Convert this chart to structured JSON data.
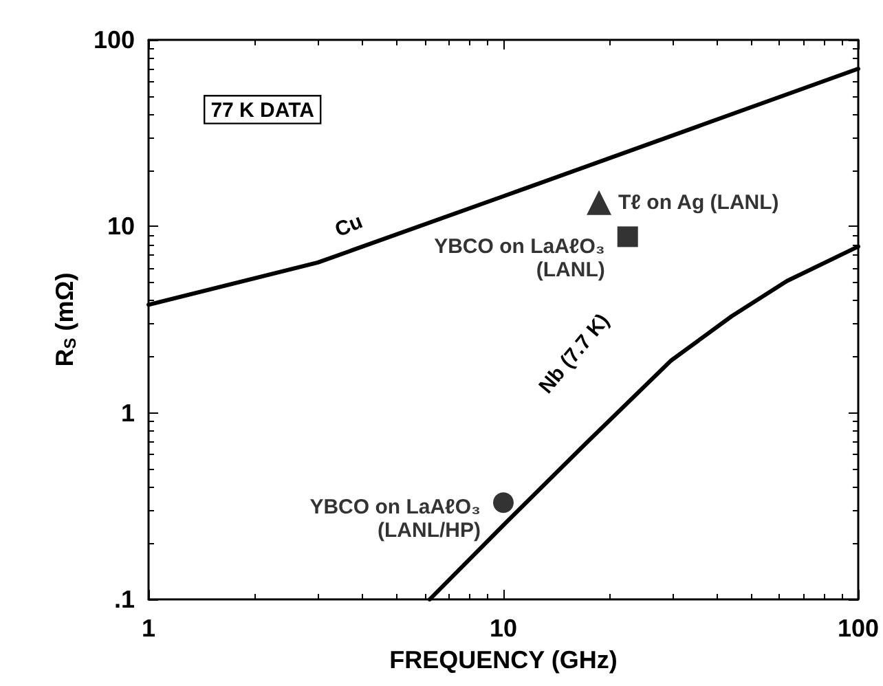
{
  "chart_data": {
    "type": "line",
    "xlabel": "FREQUENCY (GHz)",
    "ylabel": "R$_{S}$ (mΩ)",
    "log": "xy",
    "grid": false,
    "legend": false,
    "xlim": [
      1,
      100
    ],
    "xticks": [
      1,
      10,
      100
    ],
    "ylim": [
      0.1,
      100
    ],
    "yticks": [
      {
        "value": 0.1,
        "label": ".1"
      },
      1,
      10,
      100
    ],
    "annotations": [
      "77 K DATA"
    ],
    "series": [
      {
        "name": "Cu",
        "color": "#000000",
        "x": [
          1,
          3,
          10,
          100
        ],
        "values": [
          3.8,
          6.4,
          14.5,
          70
        ]
      },
      {
        "name": "Nb (7.7 K)",
        "color": "#000000",
        "x": [
          6.2,
          10,
          17,
          29.6,
          44,
          63,
          100
        ],
        "values": [
          0.1,
          0.25,
          0.68,
          1.9,
          3.3,
          5.1,
          7.8
        ]
      },
      {
        "name": "Tℓ on Ag (LANL)",
        "type": "scatter",
        "marker": "triangle",
        "color": "#000000",
        "x": [
          18.6
        ],
        "values": [
          13.4
        ]
      },
      {
        "name": "YBCO on LaAℓO₃\n(LANL)",
        "type": "scatter",
        "marker": "square",
        "color": "#000000",
        "x": [
          22.4
        ],
        "values": [
          8.8
        ]
      },
      {
        "name": "YBCO on LaAℓO₃\n(LANL/HP)",
        "type": "scatter",
        "marker": "circle",
        "color": "#000000",
        "x": [
          10
        ],
        "values": [
          0.33
        ]
      }
    ]
  }
}
